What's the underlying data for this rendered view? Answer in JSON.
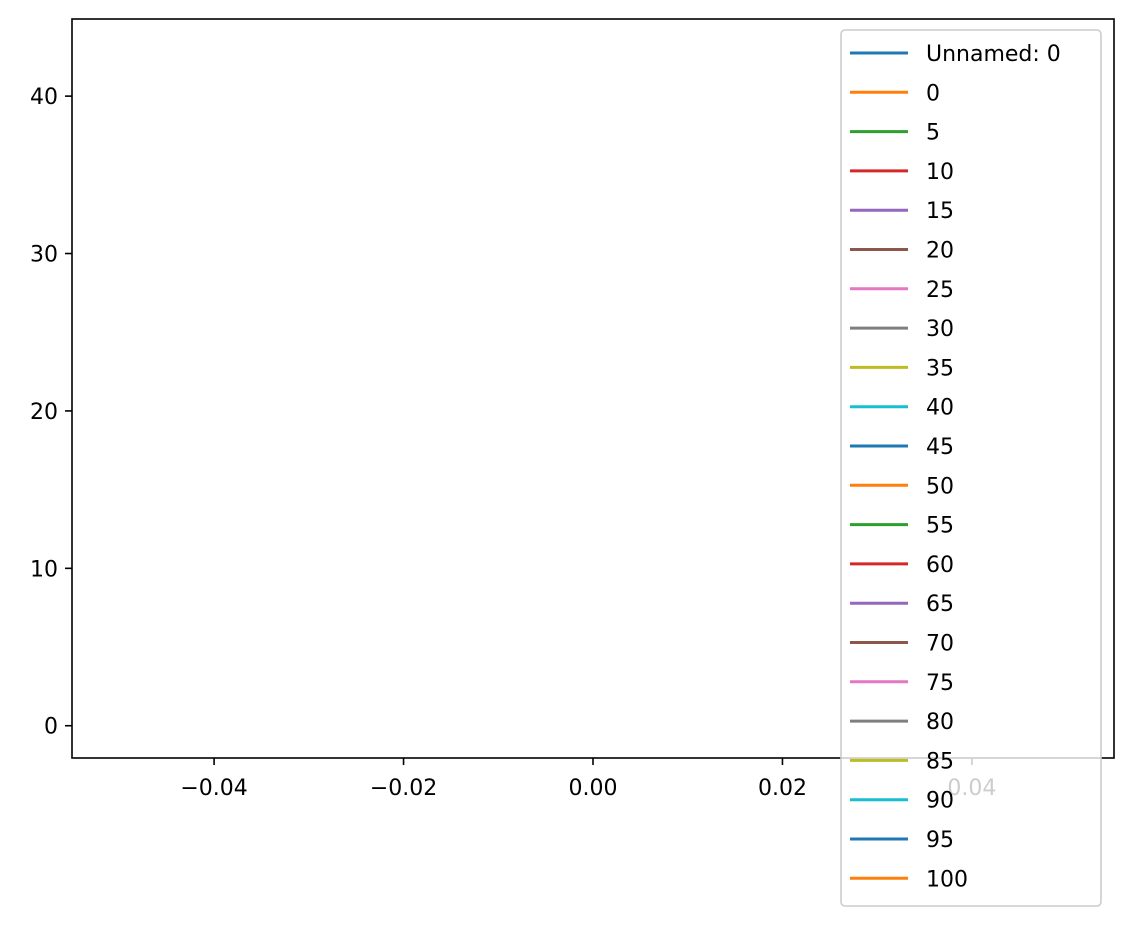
{
  "chart_data": {
    "type": "line",
    "title": "",
    "xlabel": "",
    "ylabel": "",
    "xlim": [
      -0.055,
      0.055
    ],
    "ylim": [
      -2.05,
      44.9
    ],
    "x_ticks": [
      -0.04,
      -0.02,
      0.0,
      0.02,
      0.04
    ],
    "x_tick_labels": [
      "−0.04",
      "−0.02",
      "0.00",
      "0.02",
      "0.04"
    ],
    "y_ticks": [
      0,
      10,
      20,
      30,
      40
    ],
    "y_tick_labels": [
      "0",
      "10",
      "20",
      "30",
      "40"
    ],
    "grid": false,
    "legend_placement": "upper-right",
    "series": [
      {
        "name": "Unnamed: 0",
        "color": "#1f77b4",
        "values": []
      },
      {
        "name": "0",
        "color": "#ff7f0e",
        "values": []
      },
      {
        "name": "5",
        "color": "#2ca02c",
        "values": []
      },
      {
        "name": "10",
        "color": "#d62728",
        "values": []
      },
      {
        "name": "15",
        "color": "#9467bd",
        "values": []
      },
      {
        "name": "20",
        "color": "#8c564b",
        "values": []
      },
      {
        "name": "25",
        "color": "#e377c2",
        "values": []
      },
      {
        "name": "30",
        "color": "#7f7f7f",
        "values": []
      },
      {
        "name": "35",
        "color": "#bcbd22",
        "values": []
      },
      {
        "name": "40",
        "color": "#17becf",
        "values": []
      },
      {
        "name": "45",
        "color": "#1f77b4",
        "values": []
      },
      {
        "name": "50",
        "color": "#ff7f0e",
        "values": []
      },
      {
        "name": "55",
        "color": "#2ca02c",
        "values": []
      },
      {
        "name": "60",
        "color": "#d62728",
        "values": []
      },
      {
        "name": "65",
        "color": "#9467bd",
        "values": []
      },
      {
        "name": "70",
        "color": "#8c564b",
        "values": []
      },
      {
        "name": "75",
        "color": "#e377c2",
        "values": []
      },
      {
        "name": "80",
        "color": "#7f7f7f",
        "values": []
      },
      {
        "name": "85",
        "color": "#bcbd22",
        "values": []
      },
      {
        "name": "90",
        "color": "#17becf",
        "values": []
      },
      {
        "name": "95",
        "color": "#1f77b4",
        "values": []
      },
      {
        "name": "100",
        "color": "#ff7f0e",
        "values": []
      }
    ]
  }
}
